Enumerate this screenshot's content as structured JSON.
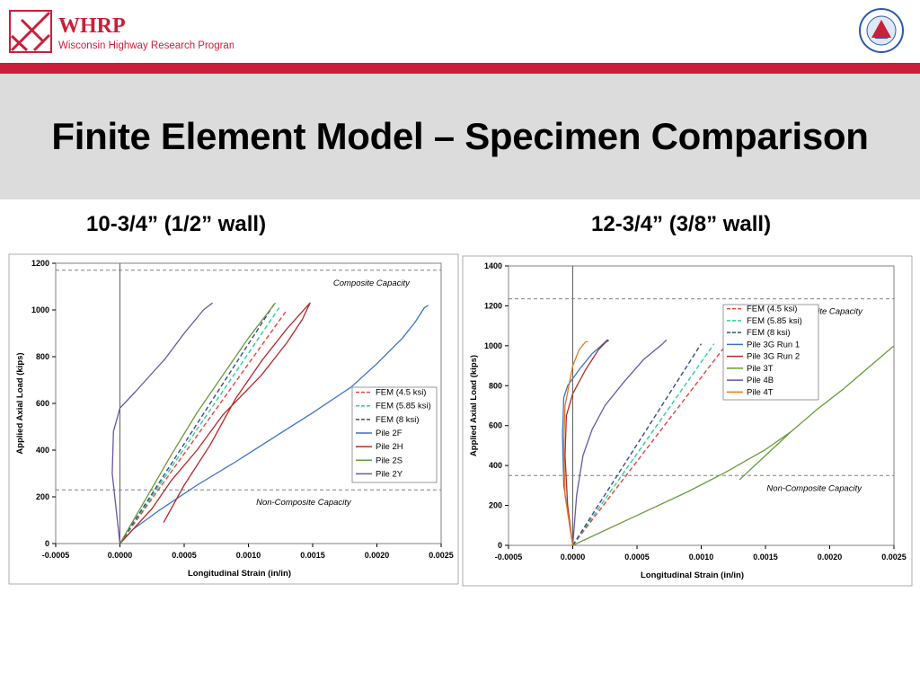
{
  "slide": {
    "logo_left_text": "WHRP",
    "logo_left_subtext": "Wisconsin Highway Research Program",
    "logo_right_name": "wisconsin-dot-seal-icon",
    "title": "Finite Element Model – Specimen Comparison",
    "subtitle_left": "10-3/4” (1/2” wall)",
    "subtitle_right": "12-3/4” (3/8” wall)"
  },
  "colors": {
    "brand_red": "#c8203a",
    "title_band": "#dcdcdc"
  },
  "chart_data": [
    {
      "type": "line",
      "xlabel": "Longitudinal Strain (in/in)",
      "ylabel": "Applied Axial Load (kips)",
      "xlim": [
        -0.0005,
        0.0025
      ],
      "ylim": [
        0,
        1200
      ],
      "xticks": [
        "-0.0005",
        "0.0000",
        "0.0005",
        "0.0010",
        "0.0015",
        "0.0020",
        "0.0025"
      ],
      "yticks": [
        "0",
        "200",
        "400",
        "600",
        "800",
        "1000",
        "1200"
      ],
      "grid": false,
      "legend_position": "right",
      "reference_lines": [
        {
          "label": "Composite Capacity",
          "y": 1170
        },
        {
          "label": "Non-Composite Capacity",
          "y": 230
        }
      ],
      "series": [
        {
          "name": "FEM (4.5 ksi)",
          "color": "#e8423c",
          "dashed": true,
          "x": [
            0,
            0.0013
          ],
          "y": [
            0,
            1000
          ]
        },
        {
          "name": "FEM (5.85 ksi)",
          "color": "#2ecf95",
          "dashed": true,
          "x": [
            0,
            0.00124
          ],
          "y": [
            0,
            1010
          ]
        },
        {
          "name": "FEM (8 ksi)",
          "color": "#3a4a8a",
          "dashed": true,
          "x": [
            0,
            0.0012
          ],
          "y": [
            0,
            1025
          ]
        },
        {
          "name": "Pile 2F",
          "color": "#3d72c4",
          "dashed": false,
          "x": [
            0,
            0.0001,
            0.0003,
            0.0006,
            0.0009,
            0.0012,
            0.0015,
            0.0018,
            0.002,
            0.0022,
            0.0023,
            0.00237,
            0.0024
          ],
          "y": [
            0,
            60,
            140,
            250,
            350,
            455,
            560,
            670,
            770,
            880,
            950,
            1010,
            1020
          ]
        },
        {
          "name": "Pile 2H",
          "color": "#b22a2a",
          "dashed": false,
          "x": [
            0.00034,
            0.0005,
            0.0007,
            0.0009,
            0.0011,
            0.0013,
            0.00148,
            0.00142,
            0.0013,
            0.0011,
            0.0008,
            0.0006,
            0.0004,
            0.00025,
            0.0001,
            0
          ],
          "y": [
            90,
            250,
            420,
            620,
            780,
            920,
            1030,
            960,
            860,
            720,
            550,
            400,
            270,
            150,
            60,
            0
          ]
        },
        {
          "name": "Pile 2S",
          "color": "#6a9a3a",
          "dashed": false,
          "x": [
            0,
            0.0002,
            0.0004,
            0.0006,
            0.0008,
            0.001,
            0.00121
          ],
          "y": [
            0,
            190,
            380,
            560,
            720,
            880,
            1030
          ]
        },
        {
          "name": "Pile 2Y",
          "color": "#6b55a6",
          "dashed": false,
          "x": [
            0,
            -3e-05,
            -6e-05,
            -5e-05,
            0,
            0.00012,
            0.00035,
            0.0005,
            0.00065,
            0.00072
          ],
          "y": [
            0,
            150,
            300,
            480,
            580,
            650,
            790,
            900,
            1000,
            1030
          ]
        }
      ]
    },
    {
      "type": "line",
      "xlabel": "Longitudinal Strain (in/in)",
      "ylabel": "Applied Axial Load (kips)",
      "xlim": [
        -0.0005,
        0.0025
      ],
      "ylim": [
        0,
        1400
      ],
      "xticks": [
        "-0.0005",
        "0.0000",
        "0.0005",
        "0.0010",
        "0.0015",
        "0.0020",
        "0.0025"
      ],
      "yticks": [
        "0",
        "200",
        "400",
        "600",
        "800",
        "1000",
        "1200",
        "1400"
      ],
      "grid": false,
      "legend_position": "top-right",
      "reference_lines": [
        {
          "label": "Composite Capacity",
          "y": 1235
        },
        {
          "label": "Non-Composite Capacity",
          "y": 350
        }
      ],
      "series": [
        {
          "name": "FEM (4.5 ksi)",
          "color": "#e8423c",
          "dashed": true,
          "x": [
            0,
            0.0012
          ],
          "y": [
            0,
            1010
          ]
        },
        {
          "name": "FEM (5.85 ksi)",
          "color": "#2ecf95",
          "dashed": true,
          "x": [
            0,
            0.0011
          ],
          "y": [
            0,
            1010
          ]
        },
        {
          "name": "FEM (8 ksi)",
          "color": "#3a4a8a",
          "dashed": true,
          "x": [
            0,
            0.001
          ],
          "y": [
            0,
            1010
          ]
        },
        {
          "name": "Pile 3G Run 1",
          "color": "#3d72c4",
          "dashed": false,
          "x": [
            0,
            -7e-05,
            -8e-05,
            -7e-05,
            -4e-05,
            5e-05,
            0.00015,
            0.00022,
            0.00027,
            0.00028
          ],
          "y": [
            0,
            300,
            550,
            740,
            800,
            880,
            960,
            1000,
            1030,
            1025
          ]
        },
        {
          "name": "Pile 3G Run 2",
          "color": "#b22a2a",
          "dashed": false,
          "x": [
            0,
            -4e-05,
            -6e-05,
            -5e-05,
            0,
            0.0001,
            0.0002,
            0.00026,
            0.00028
          ],
          "y": [
            0,
            200,
            450,
            650,
            760,
            880,
            980,
            1020,
            1025
          ]
        },
        {
          "name": "Pile 3T",
          "color": "#6a9a3a",
          "dashed": false,
          "x": [
            0,
            0.0005,
            0.0009,
            0.0012,
            0.0015,
            0.0017,
            0.0013,
            0.00145,
            0.0017,
            0.0019,
            0.0021,
            0.0023,
            0.0025
          ],
          "y": [
            0,
            150,
            270,
            370,
            480,
            570,
            330,
            420,
            570,
            680,
            780,
            890,
            1000
          ]
        },
        {
          "name": "Pile 4B",
          "color": "#6b55a6",
          "dashed": false,
          "x": [
            0,
            3e-05,
            8e-05,
            0.00015,
            0.00025,
            0.0004,
            0.00055,
            0.0007,
            0.00073
          ],
          "y": [
            0,
            250,
            450,
            580,
            700,
            820,
            930,
            1010,
            1030
          ]
        },
        {
          "name": "Pile 4T",
          "color": "#e37b20",
          "dashed": false,
          "x": [
            0,
            -6e-05,
            -7e-05,
            -6e-05,
            -3e-05,
            0,
            5e-05,
            0.0001,
            0.00012
          ],
          "y": [
            0,
            250,
            500,
            700,
            800,
            900,
            980,
            1020,
            1020
          ]
        }
      ]
    }
  ]
}
